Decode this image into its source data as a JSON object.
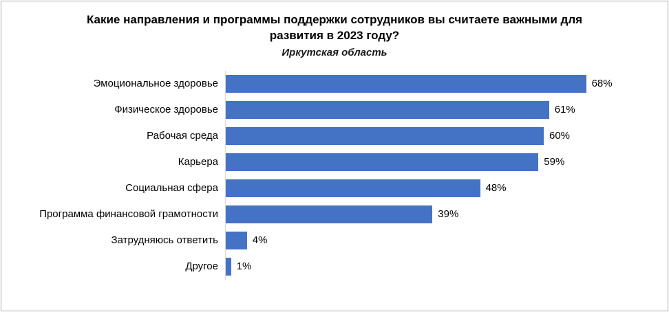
{
  "chart_data": {
    "type": "bar",
    "orientation": "horizontal",
    "title": "Какие направления и программы поддержки сотрудников вы считаете важными для развития в 2023 году?",
    "subtitle": "Иркутская область",
    "categories": [
      "Эмоциональное здоровье",
      "Физическое здоровье",
      "Рабочая среда",
      "Карьера",
      "Социальная сфера",
      "Программа финансовой грамотности",
      "Затрудняюсь ответить",
      "Другое"
    ],
    "values": [
      68,
      61,
      60,
      59,
      48,
      39,
      4,
      1
    ],
    "value_labels": [
      "68%",
      "61%",
      "60%",
      "59%",
      "48%",
      "39%",
      "4%",
      "1%"
    ],
    "bar_color": "#4472C4",
    "xlim": [
      0,
      100
    ],
    "legend": "none",
    "grid": "off"
  }
}
